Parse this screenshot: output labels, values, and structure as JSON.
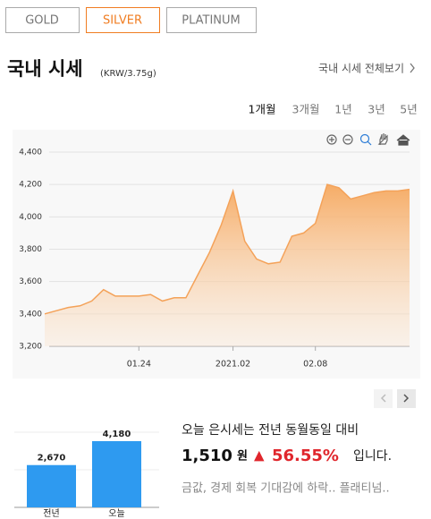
{
  "tabs": {
    "items": [
      "GOLD",
      "SILVER",
      "PLATINUM"
    ],
    "selected": 1
  },
  "header": {
    "title": "국내 시세",
    "unit": "(KRW/3.75g)",
    "link": "국내 시세 전체보기"
  },
  "period_tabs": {
    "items": [
      "1개월",
      "3개월",
      "1년",
      "3년",
      "5년"
    ],
    "selected": 0
  },
  "chart_data": [
    {
      "type": "area",
      "color": "#f4a259",
      "grid": true,
      "categories": [
        null,
        null,
        null,
        null,
        null,
        null,
        null,
        null,
        "01.24",
        null,
        null,
        null,
        null,
        null,
        null,
        null,
        "2021.02",
        null,
        null,
        null,
        null,
        null,
        null,
        "02.08",
        null,
        null,
        null,
        null,
        null,
        null,
        null,
        null
      ],
      "values": [
        3400,
        3420,
        3440,
        3450,
        3480,
        3550,
        3510,
        3510,
        3510,
        3520,
        3480,
        3500,
        3500,
        3640,
        3780,
        3950,
        4160,
        3850,
        3740,
        3710,
        3720,
        3880,
        3900,
        3960,
        4200,
        4180,
        4110,
        4130,
        4150,
        4160,
        4160,
        4170
      ],
      "ylim": [
        3200,
        4400
      ],
      "yticks": [
        {
          "value": 3200,
          "label": "3,200"
        },
        {
          "value": 3400,
          "label": "3,400"
        },
        {
          "value": 3600,
          "label": "3,600"
        },
        {
          "value": 3800,
          "label": "3,800"
        },
        {
          "value": 4000,
          "label": "4,000"
        },
        {
          "value": 4200,
          "label": "4,200"
        },
        {
          "value": 4400,
          "label": "4,400"
        }
      ]
    },
    {
      "type": "bar",
      "color": "#2e9af0",
      "categories": [
        "전년",
        "오늘"
      ],
      "values": [
        2670,
        4180
      ],
      "value_labels": [
        "2,670",
        "4,180"
      ]
    }
  ],
  "summary": {
    "line1": "오늘 은시세는 전년 동월동일 대비",
    "amount": "1,510",
    "currency": "원",
    "arrow": "▲",
    "percent": "56.55%",
    "suffix": "입니다.",
    "news": "금값, 경제 회복 기대감에 하락.. 플래티넘.."
  }
}
